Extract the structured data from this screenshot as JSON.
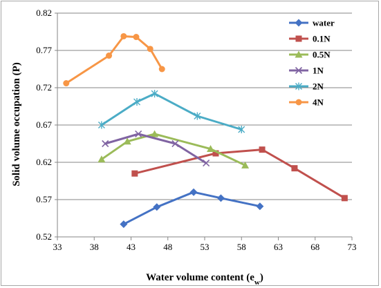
{
  "chart_data": {
    "type": "line",
    "xlabel": "Water volume content (e",
    "xlabel_sub": "w",
    "xlabel_end": ")",
    "ylabel": "Solid volume occupation  (P)",
    "xlim": [
      33,
      73
    ],
    "ylim": [
      0.52,
      0.82
    ],
    "xticks": [
      "33",
      "38",
      "43",
      "48",
      "53",
      "58",
      "63",
      "68",
      "73"
    ],
    "yticks": [
      "0.52",
      "0.57",
      "0.62",
      "0.67",
      "0.72",
      "0.77",
      "0.82"
    ],
    "grid": "horizontal",
    "legend_position": "right",
    "series": [
      {
        "name": "water",
        "color": "#4472c4",
        "marker": "diamond",
        "x": [
          42.0,
          46.5,
          51.5,
          55.2,
          60.5
        ],
        "y": [
          0.537,
          0.56,
          0.58,
          0.572,
          0.561
        ]
      },
      {
        "name": "0.1N",
        "color": "#c0504d",
        "marker": "square",
        "x": [
          43.5,
          54.5,
          60.8,
          65.2,
          72.0
        ],
        "y": [
          0.605,
          0.632,
          0.637,
          0.612,
          0.572
        ]
      },
      {
        "name": "0.5N",
        "color": "#9bbb59",
        "marker": "triangle",
        "x": [
          39.0,
          42.5,
          46.2,
          53.8,
          58.5
        ],
        "y": [
          0.624,
          0.648,
          0.658,
          0.638,
          0.616
        ]
      },
      {
        "name": "1N",
        "color": "#8064a2",
        "marker": "x",
        "x": [
          39.5,
          44.0,
          49.0,
          53.2
        ],
        "y": [
          0.645,
          0.658,
          0.645,
          0.619
        ]
      },
      {
        "name": "2N",
        "color": "#4bacc6",
        "marker": "star",
        "x": [
          39.0,
          43.8,
          46.2,
          52.0,
          58.0
        ],
        "y": [
          0.67,
          0.701,
          0.712,
          0.682,
          0.664
        ]
      },
      {
        "name": "4N",
        "color": "#f79646",
        "marker": "circle",
        "x": [
          34.2,
          40.0,
          42.0,
          43.7,
          45.6,
          47.2
        ],
        "y": [
          0.726,
          0.763,
          0.789,
          0.788,
          0.772,
          0.745
        ]
      }
    ]
  }
}
